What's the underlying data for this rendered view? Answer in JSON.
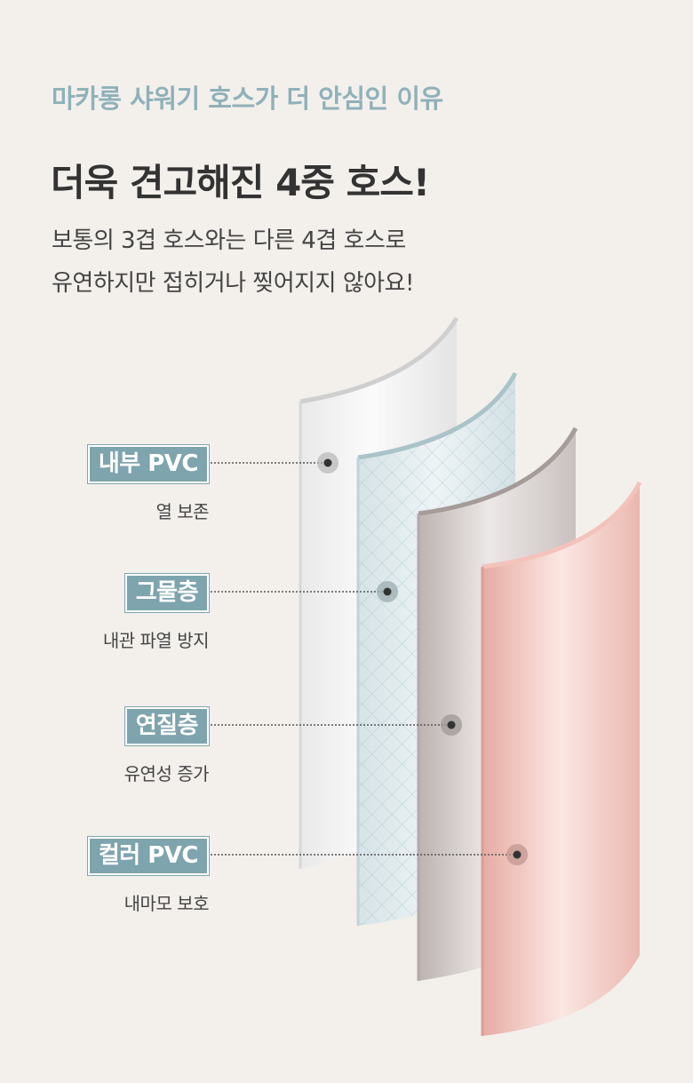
{
  "header": {
    "eyebrow": "마카롱 샤워기 호스가 더 안심인 이유",
    "headline": "더욱 견고해진 4중 호스!",
    "desc_line1": "보통의 3겹 호스와는 다른 4겹 호스로",
    "desc_line2": "유연하지만 접히거나 찢어지지 않아요!"
  },
  "layers": [
    {
      "tag": "내부 PVC",
      "desc": "열 보존"
    },
    {
      "tag": "그물층",
      "desc": "내관 파열 방지"
    },
    {
      "tag": "연질층",
      "desc": "유연성 증가"
    },
    {
      "tag": "컬러 PVC",
      "desc": "내마모 보호"
    }
  ],
  "colors": {
    "background": "#f3f0ec",
    "eyebrow": "#8fb1b9",
    "tag_bg": "#7ea4ae",
    "layer_inner_pvc": "#f2f2f2",
    "layer_mesh": "#dbe7eb",
    "layer_soft": "#cfc8c6",
    "layer_color_pvc": "#f2cfc8"
  }
}
